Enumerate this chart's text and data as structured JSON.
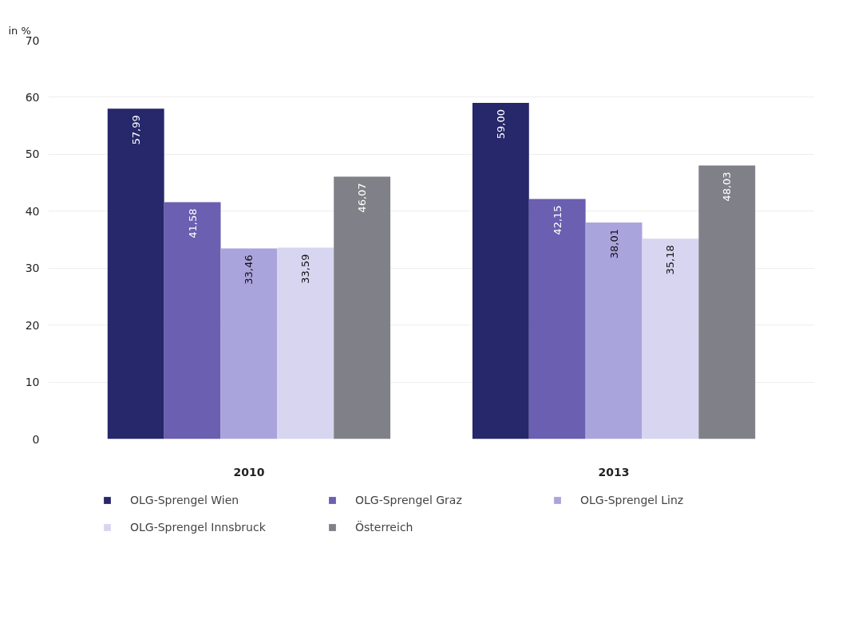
{
  "chart_data": {
    "type": "bar",
    "ylabel": "in %",
    "categories": [
      "2010",
      "2013"
    ],
    "series": [
      {
        "name": "OLG-Sprengel Wien",
        "color": "#27276b",
        "values": [
          57.99,
          59.0
        ],
        "value_labels": [
          "57,99",
          "59,00"
        ]
      },
      {
        "name": "OLG-Sprengel Graz",
        "color": "#6a5fb0",
        "values": [
          41.58,
          42.15
        ],
        "value_labels": [
          "41,58",
          "42,15"
        ]
      },
      {
        "name": "OLG-Sprengel Linz",
        "color": "#aaa4dd",
        "values": [
          33.46,
          38.01
        ],
        "value_labels": [
          "33,46",
          "38,01"
        ]
      },
      {
        "name": "OLG-Sprengel Innsbruck",
        "color": "#d8d5f1",
        "values": [
          33.59,
          35.18
        ],
        "value_labels": [
          "33,59",
          "35,18"
        ]
      },
      {
        "name": "Österreich",
        "color": "#808088",
        "values": [
          46.07,
          48.03
        ],
        "value_labels": [
          "46,07",
          "48,03"
        ]
      }
    ],
    "ylim": [
      0,
      70
    ],
    "yticks": [
      0,
      10,
      20,
      30,
      40,
      50,
      60,
      70
    ],
    "grid": "y",
    "legend": "bottom"
  }
}
